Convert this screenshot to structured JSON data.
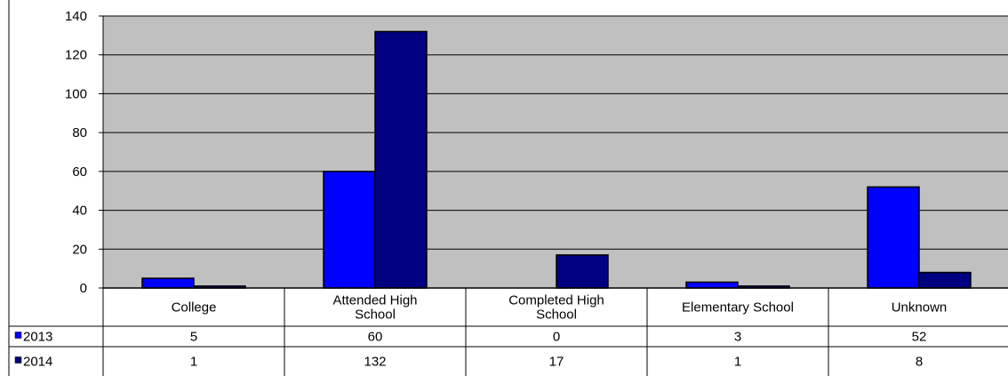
{
  "chart_data": {
    "type": "bar",
    "categories": [
      [
        "College"
      ],
      [
        "Attended High",
        "School"
      ],
      [
        "Completed High",
        "School"
      ],
      [
        "Elementary School"
      ],
      [
        "Unknown"
      ]
    ],
    "series": [
      {
        "name": "2013",
        "values": [
          5,
          60,
          0,
          3,
          52
        ],
        "color": "#0000ff"
      },
      {
        "name": "2014",
        "values": [
          1,
          132,
          17,
          1,
          8
        ],
        "color": "#000080"
      }
    ],
    "ylim": [
      0,
      140
    ],
    "yticks": [
      0,
      20,
      40,
      60,
      80,
      100,
      120,
      140
    ],
    "grid": true,
    "plot_background": "#c0c0c0",
    "legend": "data-table-left"
  }
}
